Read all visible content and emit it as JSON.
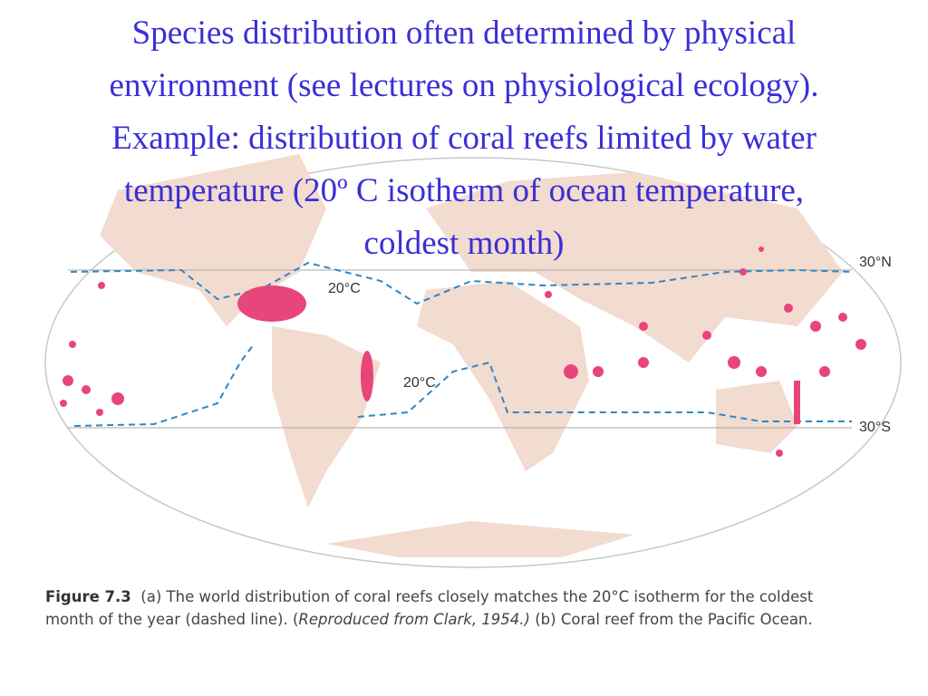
{
  "title_lines": [
    "Species distribution often determined by physical",
    "environment (see lectures on physiological ecology).",
    "Example: distribution of coral reefs limited by water",
    "temperature (20º C isotherm of ocean temperature,",
    "coldest month)"
  ],
  "map": {
    "lat_north": "30°N",
    "lat_south": "30°S",
    "isotherm_north": "20°C",
    "isotherm_south": "20°C"
  },
  "caption": {
    "label": "Figure 7.3",
    "text": "(a) The world distribution of coral reefs closely matches the 20°C isotherm for the coldest month of the year (dashed line). (",
    "source": "Reproduced from Clark, 1954.)",
    "rest": " (b) Coral reef from the Pacific Ocean."
  }
}
